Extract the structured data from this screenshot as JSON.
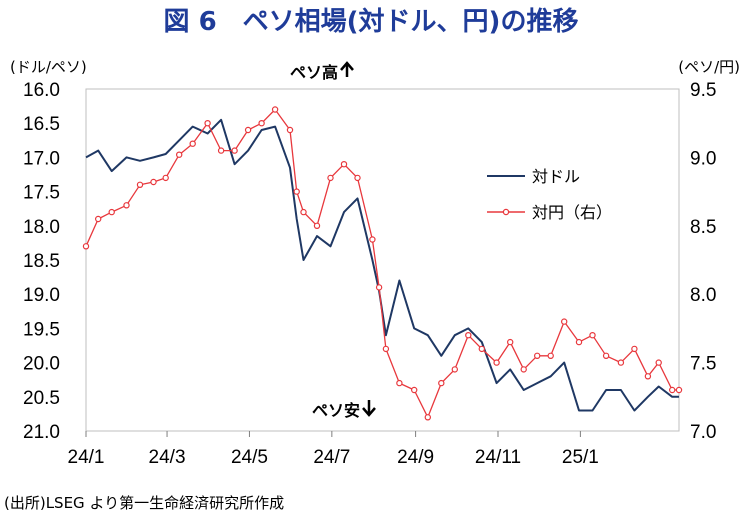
{
  "chart_data": {
    "type": "line",
    "title": "図 6　ペソ相場(対ドル、円)の推移",
    "ylabel_left": "(ドル/ペソ)",
    "ylabel_right": "(ペソ/円)",
    "annotation_top": "ペソ高",
    "annotation_bottom": "ペソ安",
    "source": "(出所)LSEG より第一生命経済研究所作成",
    "left_axis": {
      "min": 16.0,
      "max": 21.0,
      "inverted": true,
      "ticks": [
        "16.0",
        "16.5",
        "17.0",
        "17.5",
        "18.0",
        "18.5",
        "19.0",
        "19.5",
        "20.0",
        "20.5",
        "21.0"
      ]
    },
    "right_axis": {
      "min": 7.0,
      "max": 9.5,
      "ticks": [
        "9.5",
        "9.0",
        "8.5",
        "8.0",
        "7.5",
        "7.0"
      ]
    },
    "x_ticks": [
      "24/1",
      "24/3",
      "24/5",
      "24/7",
      "24/9",
      "24/11",
      "25/1"
    ],
    "x_range": [
      "2024-01-01",
      "2025-03-15"
    ],
    "legend_position": "right-middle",
    "series": [
      {
        "name": "対ドル",
        "axis": "left",
        "color": "#1f3864",
        "marker": "none",
        "x": [
          "2024-01-01",
          "2024-01-10",
          "2024-01-20",
          "2024-01-31",
          "2024-02-10",
          "2024-02-20",
          "2024-02-29",
          "2024-03-10",
          "2024-03-20",
          "2024-03-31",
          "2024-04-10",
          "2024-04-20",
          "2024-04-30",
          "2024-05-10",
          "2024-05-20",
          "2024-05-31",
          "2024-06-05",
          "2024-06-10",
          "2024-06-20",
          "2024-06-30",
          "2024-07-10",
          "2024-07-20",
          "2024-07-31",
          "2024-08-05",
          "2024-08-10",
          "2024-08-20",
          "2024-08-31",
          "2024-09-10",
          "2024-09-20",
          "2024-09-30",
          "2024-10-10",
          "2024-10-20",
          "2024-10-31",
          "2024-11-10",
          "2024-11-20",
          "2024-11-30",
          "2024-12-10",
          "2024-12-20",
          "2024-12-31",
          "2025-01-10",
          "2025-01-20",
          "2025-01-31",
          "2025-02-10",
          "2025-02-20",
          "2025-02-28",
          "2025-03-10",
          "2025-03-15"
        ],
        "values": [
          17.0,
          16.9,
          17.2,
          17.0,
          17.05,
          17.0,
          16.95,
          16.75,
          16.55,
          16.65,
          16.45,
          17.1,
          16.9,
          16.6,
          16.55,
          17.15,
          17.9,
          18.5,
          18.15,
          18.3,
          17.8,
          17.6,
          18.5,
          18.95,
          19.6,
          18.8,
          19.5,
          19.6,
          19.9,
          19.6,
          19.5,
          19.7,
          20.3,
          20.1,
          20.4,
          20.3,
          20.2,
          20.0,
          20.7,
          20.7,
          20.4,
          20.4,
          20.7,
          20.5,
          20.35,
          20.5,
          20.5
        ]
      },
      {
        "name": "対円（右）",
        "axis": "right",
        "color": "#e8383d",
        "marker": "circle",
        "x": [
          "2024-01-01",
          "2024-01-10",
          "2024-01-20",
          "2024-01-31",
          "2024-02-10",
          "2024-02-20",
          "2024-02-29",
          "2024-03-10",
          "2024-03-20",
          "2024-03-31",
          "2024-04-10",
          "2024-04-20",
          "2024-04-30",
          "2024-05-10",
          "2024-05-20",
          "2024-05-31",
          "2024-06-05",
          "2024-06-10",
          "2024-06-20",
          "2024-06-30",
          "2024-07-10",
          "2024-07-20",
          "2024-07-31",
          "2024-08-05",
          "2024-08-10",
          "2024-08-20",
          "2024-08-31",
          "2024-09-10",
          "2024-09-20",
          "2024-09-30",
          "2024-10-10",
          "2024-10-20",
          "2024-10-31",
          "2024-11-10",
          "2024-11-20",
          "2024-11-30",
          "2024-12-10",
          "2024-12-20",
          "2024-12-31",
          "2025-01-10",
          "2025-01-20",
          "2025-01-31",
          "2025-02-10",
          "2025-02-20",
          "2025-02-28",
          "2025-03-10",
          "2025-03-15"
        ],
        "values": [
          8.35,
          8.55,
          8.6,
          8.65,
          8.8,
          8.82,
          8.85,
          9.02,
          9.1,
          9.25,
          9.05,
          9.05,
          9.2,
          9.25,
          9.35,
          9.2,
          8.75,
          8.6,
          8.5,
          8.85,
          8.95,
          8.85,
          8.4,
          8.05,
          7.6,
          7.35,
          7.3,
          7.1,
          7.35,
          7.45,
          7.7,
          7.6,
          7.5,
          7.65,
          7.45,
          7.55,
          7.55,
          7.8,
          7.65,
          7.7,
          7.55,
          7.5,
          7.6,
          7.4,
          7.5,
          7.3,
          7.3
        ]
      }
    ]
  }
}
